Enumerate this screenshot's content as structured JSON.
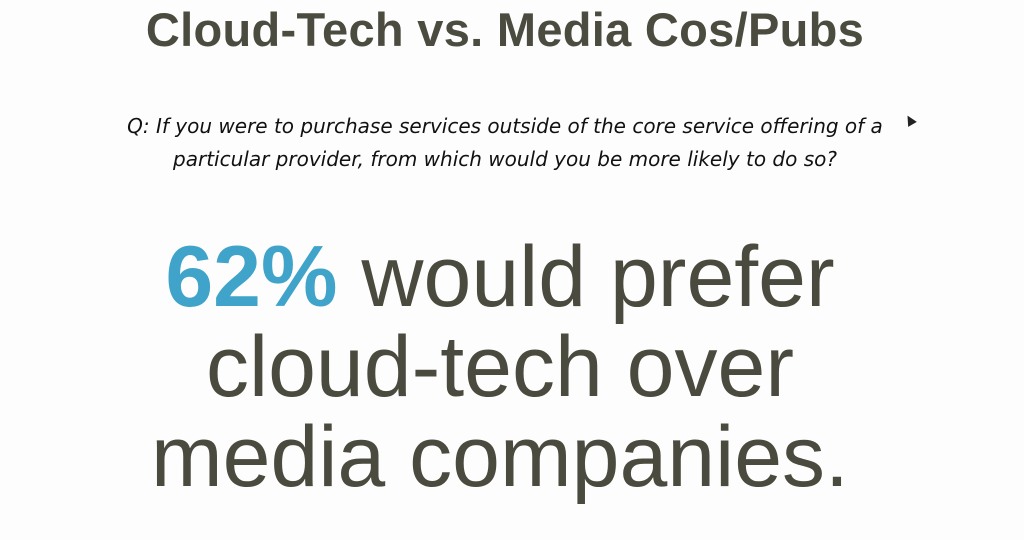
{
  "slide": {
    "title": "Cloud-Tech vs. Media Cos/Pubs",
    "question_line1": "Q: If you were to purchase services outside of the core service offering of a",
    "question_line2": "particular provider, from which would you be more likely to do so?",
    "stat_value": "62%",
    "statement_line1_rest": " would prefer",
    "statement_line2": "cloud-tech over",
    "statement_line3": "media companies.",
    "colors": {
      "text": "#4a4a3e",
      "accent": "#40a3c9"
    }
  }
}
